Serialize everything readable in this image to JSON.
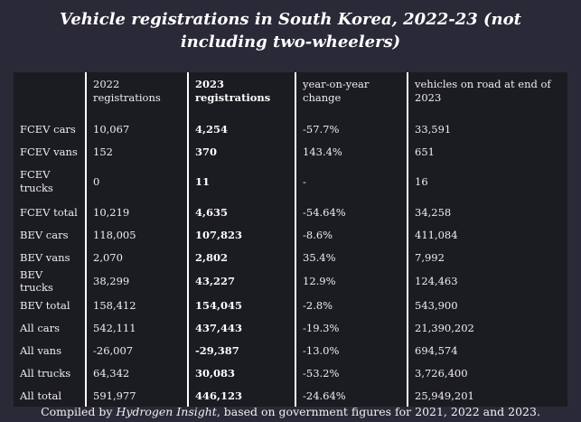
{
  "title": "Vehicle registrations in South Korea, 2022-23 (not including two-wheelers)",
  "table": {
    "headers": [
      "",
      "2022 registrations",
      "2023 registrations",
      "year-on-year change",
      "vehicles on road at end of 2023"
    ],
    "rows": [
      [
        "FCEV cars",
        "10,067",
        "4,254",
        "-57.7%",
        "33,591"
      ],
      [
        "FCEV vans",
        "152",
        "370",
        "143.4%",
        "651"
      ],
      [
        "FCEV trucks",
        "0",
        "11",
        "-",
        "16"
      ],
      [
        "FCEV total",
        "10,219",
        "4,635",
        "-54.64%",
        "34,258"
      ],
      [
        "BEV cars",
        "118,005",
        "107,823",
        "-8.6%",
        "411,084"
      ],
      [
        "BEV vans",
        "2,070",
        "2,802",
        "35.4%",
        "7,992"
      ],
      [
        "BEV trucks",
        "38,299",
        "43,227",
        "12.9%",
        "124,463"
      ],
      [
        "BEV total",
        "158,412",
        "154,045",
        "-2.8%",
        "543,900"
      ],
      [
        "All cars",
        "542,111",
        "437,443",
        "-19.3%",
        "21,390,202"
      ],
      [
        "All vans",
        "-26,007",
        "-29,387",
        "-13.0%",
        "694,574"
      ],
      [
        "All trucks",
        "64,342",
        "30,083",
        "-53.2%",
        "3,726,400"
      ],
      [
        "All total",
        "591,977",
        "446,123",
        "-24.64%",
        "25,949,201"
      ]
    ]
  },
  "footer": {
    "prefix": "Compiled by ",
    "source": "Hydrogen Insight",
    "suffix": ", based on government figures for 2021, 2022 and 2023."
  }
}
